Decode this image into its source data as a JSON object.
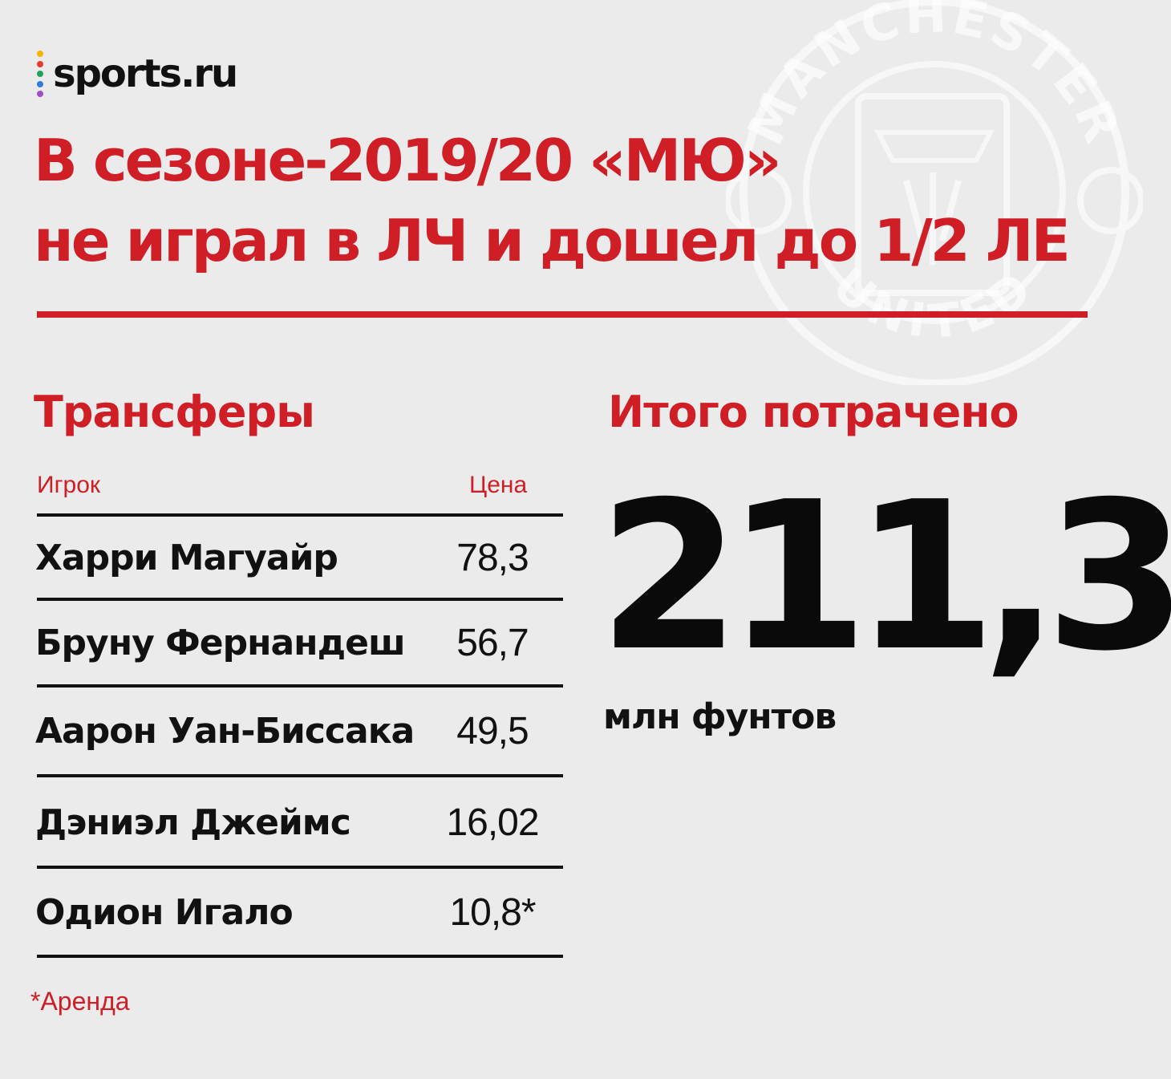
{
  "brand": {
    "name": "sports.ru",
    "dot_colors": [
      "#f5b400",
      "#e63b2e",
      "#21a35c",
      "#2f7be0",
      "#a04fc9"
    ]
  },
  "crest": {
    "top_text": "MANCHESTER",
    "bottom_text": "UNITED"
  },
  "headline": {
    "line1": "В сезоне-2019/20 «МЮ»",
    "line2": "не играл в ЛЧ и дошел до 1/2 ЛЕ"
  },
  "transfers": {
    "title": "Трансферы",
    "col_player": "Игрок",
    "col_price": "Цена",
    "rows": [
      {
        "name": "Харри Магуайр",
        "price": "78,3"
      },
      {
        "name": "Бруну Фернандеш",
        "price": "56,7"
      },
      {
        "name": "Аарон Уан-Биссака",
        "price": "49,5"
      },
      {
        "name": "Дэниэл Джеймс",
        "price": "16,02"
      },
      {
        "name": "Одион Игало",
        "price": "10,8*"
      }
    ],
    "footnote": "*Аренда"
  },
  "total": {
    "title": "Итого потрачено",
    "value": "211,3",
    "unit": "млн фунтов"
  },
  "colors": {
    "accent": "#cf1e26",
    "text": "#111111",
    "background": "#ebebeb"
  }
}
